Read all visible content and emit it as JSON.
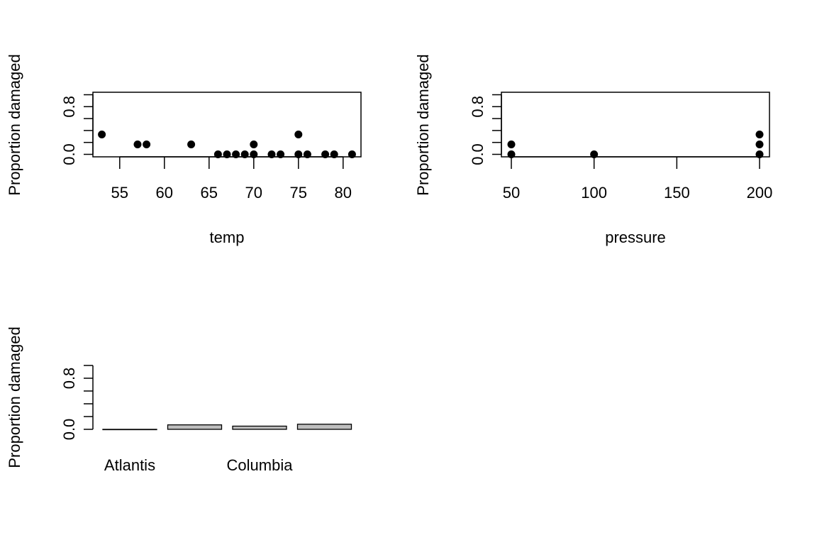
{
  "chart_data": [
    {
      "type": "scatter",
      "xlabel": "temp",
      "ylabel": "Proportion damaged",
      "xlim": [
        52,
        82
      ],
      "ylim": [
        0,
        1
      ],
      "xticks": [
        "55",
        "60",
        "65",
        "70",
        "75",
        "80"
      ],
      "yticks": [
        "0.0",
        "0.8"
      ],
      "points": [
        {
          "x": 53,
          "y": 0.333
        },
        {
          "x": 57,
          "y": 0.167
        },
        {
          "x": 58,
          "y": 0.167
        },
        {
          "x": 63,
          "y": 0.167
        },
        {
          "x": 66,
          "y": 0.0
        },
        {
          "x": 67,
          "y": 0.0
        },
        {
          "x": 68,
          "y": 0.0
        },
        {
          "x": 69,
          "y": 0.0
        },
        {
          "x": 70,
          "y": 0.167
        },
        {
          "x": 70,
          "y": 0.0
        },
        {
          "x": 72,
          "y": 0.0
        },
        {
          "x": 73,
          "y": 0.0
        },
        {
          "x": 75,
          "y": 0.333
        },
        {
          "x": 75,
          "y": 0.0
        },
        {
          "x": 76,
          "y": 0.0
        },
        {
          "x": 78,
          "y": 0.0
        },
        {
          "x": 79,
          "y": 0.0
        },
        {
          "x": 81,
          "y": 0.0
        }
      ],
      "marker_color": "#000000"
    },
    {
      "type": "scatter",
      "xlabel": "pressure",
      "ylabel": "Proportion damaged",
      "xlim": [
        44,
        206
      ],
      "ylim": [
        0,
        1
      ],
      "xticks": [
        "50",
        "100",
        "150",
        "200"
      ],
      "yticks": [
        "0.0",
        "0.8"
      ],
      "points": [
        {
          "x": 50,
          "y": 0.167
        },
        {
          "x": 50,
          "y": 0.0
        },
        {
          "x": 100,
          "y": 0.0
        },
        {
          "x": 200,
          "y": 0.333
        },
        {
          "x": 200,
          "y": 0.167
        },
        {
          "x": 200,
          "y": 0.0
        }
      ],
      "marker_color": "#000000"
    },
    {
      "type": "bar",
      "ylabel": "Proportion damaged",
      "ylim": [
        0,
        1
      ],
      "yticks": [
        "0.0",
        "0.8"
      ],
      "categories": [
        "Atlantis",
        "",
        "Columbia",
        ""
      ],
      "values": [
        0.0,
        0.07,
        0.05,
        0.08
      ],
      "bar_color": "#bebebe"
    }
  ]
}
